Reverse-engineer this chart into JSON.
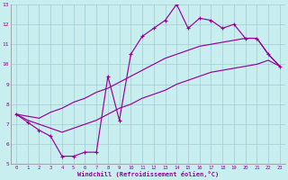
{
  "xlabel": "Windchill (Refroidissement éolien,°C)",
  "background_color": "#c8eef0",
  "grid_color": "#a0ccd0",
  "line_color": "#990099",
  "xlim_min": -0.5,
  "xlim_max": 23.5,
  "ylim_min": 5,
  "ylim_max": 13,
  "xticks": [
    0,
    1,
    2,
    3,
    4,
    5,
    6,
    7,
    8,
    9,
    10,
    11,
    12,
    13,
    14,
    15,
    16,
    17,
    18,
    19,
    20,
    21,
    22,
    23
  ],
  "yticks": [
    5,
    6,
    7,
    8,
    9,
    10,
    11,
    12,
    13
  ],
  "hours": [
    0,
    1,
    2,
    3,
    4,
    5,
    6,
    7,
    8,
    9,
    10,
    11,
    12,
    13,
    14,
    15,
    16,
    17,
    18,
    19,
    20,
    21,
    22,
    23
  ],
  "line_jagged": [
    7.5,
    7.1,
    6.7,
    6.4,
    5.4,
    5.4,
    5.6,
    5.6,
    9.4,
    7.2,
    10.5,
    11.4,
    11.8,
    12.2,
    13.0,
    11.8,
    12.3,
    12.2,
    11.8,
    12.0,
    11.3,
    11.3,
    10.5,
    9.9
  ],
  "line_upper": [
    7.5,
    7.4,
    7.3,
    7.6,
    7.8,
    8.1,
    8.3,
    8.6,
    8.8,
    9.1,
    9.4,
    9.7,
    10.0,
    10.3,
    10.5,
    10.7,
    10.9,
    11.0,
    11.1,
    11.2,
    11.3,
    11.3,
    10.5,
    9.9
  ],
  "line_lower": [
    7.5,
    7.2,
    7.0,
    6.8,
    6.6,
    6.8,
    7.0,
    7.2,
    7.5,
    7.8,
    8.0,
    8.3,
    8.5,
    8.7,
    9.0,
    9.2,
    9.4,
    9.6,
    9.7,
    9.8,
    9.9,
    10.0,
    10.2,
    9.9
  ]
}
